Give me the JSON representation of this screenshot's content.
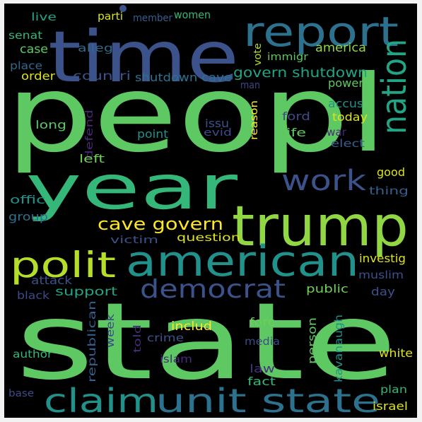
{
  "words": [
    {
      "text": "peopl",
      "color": "#5ec962"
    },
    {
      "text": "state",
      "color": "#5ec962"
    },
    {
      "text": "time",
      "color": "#3b528b"
    },
    {
      "text": "year",
      "color": "#35b779"
    },
    {
      "text": "report",
      "color": "#2c728e"
    },
    {
      "text": "trump",
      "color": "#90d743"
    },
    {
      "text": "american",
      "color": "#21918c"
    },
    {
      "text": "nation",
      "color": "#21a585"
    },
    {
      "text": "polit",
      "color": "#b5de2b"
    },
    {
      "text": "claim",
      "color": "#21918c"
    },
    {
      "text": "unit state",
      "color": "#2c728e"
    },
    {
      "text": "work",
      "color": "#3b528b"
    },
    {
      "text": "democrat",
      "color": "#3b528b"
    },
    {
      "text": "cave govern",
      "color": "#fde725"
    },
    {
      "text": "govern shutdown",
      "color": "#21a585"
    },
    {
      "text": "women",
      "color": "#35b779"
    },
    {
      "text": "parti",
      "color": "#dde318"
    },
    {
      "text": "member",
      "color": "#355f8d"
    },
    {
      "text": "live",
      "color": "#21a585"
    },
    {
      "text": "senat",
      "color": "#35b779"
    },
    {
      "text": "alleg",
      "color": "#31688e"
    },
    {
      "text": "case",
      "color": "#5ec962"
    },
    {
      "text": "place",
      "color": "#31688e"
    },
    {
      "text": "order",
      "color": "#dde318"
    },
    {
      "text": "countri",
      "color": "#3b528b"
    },
    {
      "text": "shutdown cave",
      "color": "#2c728e"
    },
    {
      "text": "vote",
      "color": "#b5de2b"
    },
    {
      "text": "immigr",
      "color": "#5ec962"
    },
    {
      "text": "america",
      "color": "#90d743"
    },
    {
      "text": "man",
      "color": "#414487"
    },
    {
      "text": "power",
      "color": "#5ec962"
    },
    {
      "text": "reason",
      "color": "#fde725"
    },
    {
      "text": "accus",
      "color": "#21918c"
    },
    {
      "text": "long",
      "color": "#5ec962"
    },
    {
      "text": "defend",
      "color": "#482878"
    },
    {
      "text": "issu",
      "color": "#3b528b"
    },
    {
      "text": "ford",
      "color": "#3e4a89"
    },
    {
      "text": "evid",
      "color": "#3e4a89"
    },
    {
      "text": "today",
      "color": "#dde318"
    },
    {
      "text": "life",
      "color": "#5ec962"
    },
    {
      "text": "war",
      "color": "#482878"
    },
    {
      "text": "elect",
      "color": "#355f8d"
    },
    {
      "text": "point",
      "color": "#21918c"
    },
    {
      "text": "left",
      "color": "#6ece58"
    },
    {
      "text": "good",
      "color": "#dde318"
    },
    {
      "text": "offic",
      "color": "#21918c"
    },
    {
      "text": "thing",
      "color": "#355f8d"
    },
    {
      "text": "group",
      "color": "#2c728e"
    },
    {
      "text": "victim",
      "color": "#3b528b"
    },
    {
      "text": "question",
      "color": "#dde318"
    },
    {
      "text": "investig",
      "color": "#dde318"
    },
    {
      "text": "muslim",
      "color": "#3b528b"
    },
    {
      "text": "attack",
      "color": "#3b528b"
    },
    {
      "text": "support",
      "color": "#21a585"
    },
    {
      "text": "public",
      "color": "#6ece58"
    },
    {
      "text": "day",
      "color": "#3b528b"
    },
    {
      "text": "black",
      "color": "#3e4a89"
    },
    {
      "text": "republican",
      "color": "#355f8d"
    },
    {
      "text": "week",
      "color": "#3e4a89"
    },
    {
      "text": "includ",
      "color": "#fde725"
    },
    {
      "text": "told",
      "color": "#472c7a"
    },
    {
      "text": "crime",
      "color": "#3b528b"
    },
    {
      "text": "forc",
      "color": "#6ece58"
    },
    {
      "text": "person",
      "color": "#5ec962"
    },
    {
      "text": "kavanaugh",
      "color": "#21918c"
    },
    {
      "text": "media",
      "color": "#3e4a89"
    },
    {
      "text": "author",
      "color": "#35b779"
    },
    {
      "text": "islam",
      "color": "#472c7a"
    },
    {
      "text": "law",
      "color": "#46337e"
    },
    {
      "text": "fact",
      "color": "#35b779"
    },
    {
      "text": "white",
      "color": "#dde318"
    },
    {
      "text": "base",
      "color": "#3e4a89"
    },
    {
      "text": "plan",
      "color": "#35b779"
    },
    {
      "text": "israel",
      "color": "#dde318"
    }
  ]
}
